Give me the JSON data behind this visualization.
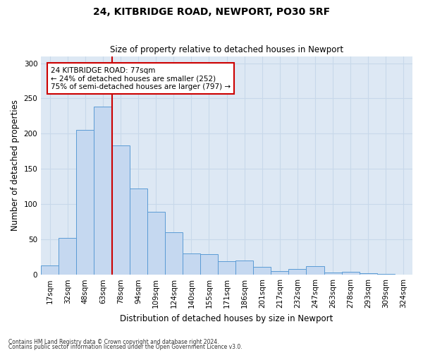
{
  "title1": "24, KITBRIDGE ROAD, NEWPORT, PO30 5RF",
  "title2": "Size of property relative to detached houses in Newport",
  "xlabel": "Distribution of detached houses by size in Newport",
  "ylabel": "Number of detached properties",
  "bar_labels": [
    "17sqm",
    "32sqm",
    "48sqm",
    "63sqm",
    "78sqm",
    "94sqm",
    "109sqm",
    "124sqm",
    "140sqm",
    "155sqm",
    "171sqm",
    "186sqm",
    "201sqm",
    "217sqm",
    "232sqm",
    "247sqm",
    "263sqm",
    "278sqm",
    "293sqm",
    "309sqm",
    "324sqm"
  ],
  "bar_values": [
    13,
    52,
    205,
    238,
    183,
    122,
    89,
    60,
    30,
    29,
    19,
    20,
    11,
    5,
    8,
    12,
    3,
    4,
    2,
    1,
    0
  ],
  "bar_color": "#c5d8f0",
  "bar_edge_color": "#5b9bd5",
  "vline_x_index": 4,
  "vline_color": "#cc0000",
  "annotation_text": "24 KITBRIDGE ROAD: 77sqm\n← 24% of detached houses are smaller (252)\n75% of semi-detached houses are larger (797) →",
  "annotation_box_color": "#ffffff",
  "annotation_box_edge": "#cc0000",
  "grid_color": "#c8d8ea",
  "background_color": "#dde8f4",
  "ylim": [
    0,
    310
  ],
  "yticks": [
    0,
    50,
    100,
    150,
    200,
    250,
    300
  ],
  "footer1": "Contains HM Land Registry data © Crown copyright and database right 2024.",
  "footer2": "Contains public sector information licensed under the Open Government Licence v3.0."
}
